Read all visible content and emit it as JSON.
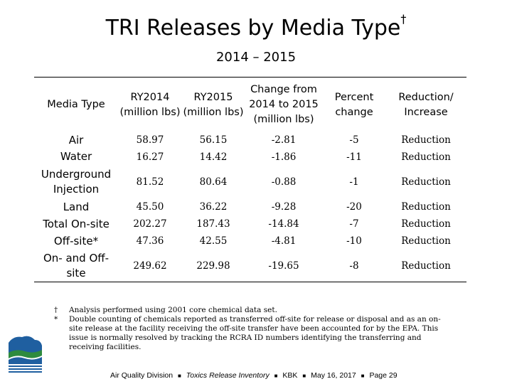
{
  "title": "TRI Releases by Media Type",
  "title_mark": "†",
  "subtitle": "2014 – 2015",
  "table": {
    "headers": [
      "Media Type",
      "RY2014 (million lbs)",
      "RY2015 (million lbs)",
      "Change from 2014 to 2015 (million lbs)",
      "Percent change",
      "Reduction/ Increase"
    ],
    "rows": [
      {
        "media": "Air",
        "ry2014": "58.97",
        "ry2015": "56.15",
        "change": "-2.81",
        "percent": "-5",
        "direction": "Reduction"
      },
      {
        "media": "Water",
        "ry2014": "16.27",
        "ry2015": "14.42",
        "change": "-1.86",
        "percent": "-11",
        "direction": "Reduction"
      },
      {
        "media": "Underground Injection",
        "ry2014": "81.52",
        "ry2015": "80.64",
        "change": "-0.88",
        "percent": "-1",
        "direction": "Reduction"
      },
      {
        "media": "Land",
        "ry2014": "45.50",
        "ry2015": "36.22",
        "change": "-9.28",
        "percent": "-20",
        "direction": "Reduction"
      },
      {
        "media": "Total On-site",
        "ry2014": "202.27",
        "ry2015": "187.43",
        "change": "-14.84",
        "percent": "-7",
        "direction": "Reduction"
      },
      {
        "media": "Off-site*",
        "ry2014": "47.36",
        "ry2015": "42.55",
        "change": "-4.81",
        "percent": "-10",
        "direction": "Reduction"
      },
      {
        "media": "On- and Off-site",
        "ry2014": "249.62",
        "ry2015": "229.98",
        "change": "-19.65",
        "percent": "-8",
        "direction": "Reduction"
      }
    ]
  },
  "footnotes": [
    {
      "symbol": "†",
      "text": "Analysis performed using 2001 core chemical data set."
    },
    {
      "symbol": "*",
      "text": "Double counting of chemicals reported as transferred off-site for release or disposal and as an on-site release at the facility receiving the off-site transfer have been accounted for by the EPA. This issue is normally resolved by tracking the RCRA ID numbers identifying the transferring and receiving facilities."
    }
  ],
  "footer": {
    "division": "Air Quality Division",
    "report": "Toxics Release Inventory",
    "author": "KBK",
    "date": "May 16, 2017",
    "page": "Page 29",
    "separator": "■"
  },
  "colors": {
    "logo_blue": "#1f5fa0",
    "logo_green": "#2e8b3e"
  }
}
